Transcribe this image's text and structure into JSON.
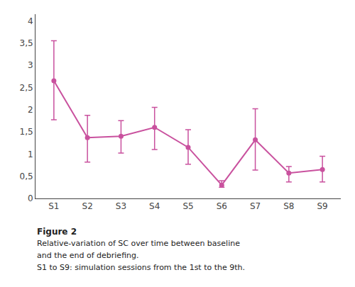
{
  "chart_data": {
    "type": "line",
    "categories": [
      "S1",
      "S2",
      "S3",
      "S4",
      "S5",
      "S6",
      "S7",
      "S8",
      "S9"
    ],
    "values": [
      2.65,
      1.37,
      1.4,
      1.6,
      1.15,
      0.3,
      1.32,
      0.57,
      0.65
    ],
    "error_upper": [
      0.9,
      0.5,
      0.35,
      0.45,
      0.4,
      0.1,
      0.7,
      0.15,
      0.3
    ],
    "error_lower": [
      0.88,
      0.55,
      0.38,
      0.5,
      0.38,
      0.05,
      0.68,
      0.2,
      0.28
    ],
    "color": "#c9519e",
    "marker": "circle",
    "line_style": "solid",
    "ylim": [
      0,
      4.15
    ],
    "yticks": [
      0,
      {
        "value": 0.5,
        "label": "0,5"
      },
      1,
      {
        "value": 1.5,
        "label": "1,5"
      },
      2,
      {
        "value": 2.5,
        "label": "2,5"
      },
      3,
      {
        "value": 3.5,
        "label": "3,5"
      },
      4
    ],
    "grid": false,
    "annotations": [
      "Figure 2",
      "Relative-variation of SC over time between baseline",
      "and the end of debriefing.",
      "S1 to S9: simulation sessions from the 1st to the 9th."
    ]
  }
}
